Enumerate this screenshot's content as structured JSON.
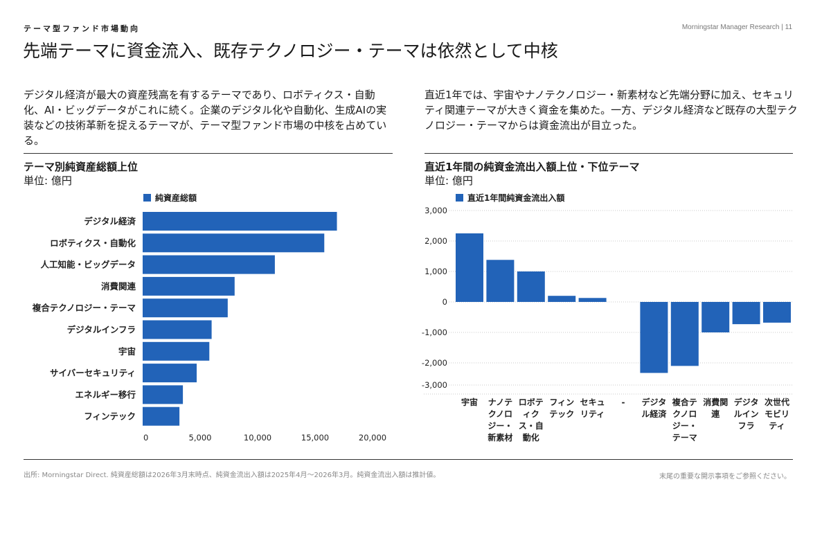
{
  "header": {
    "eyebrow": "テーマ型ファンド市場動向",
    "source_page": "Morningstar Manager Research | 11",
    "title": "先端テーマに資金流入、既存テクノロジー・テーマは依然として中核"
  },
  "intro": {
    "left": "デジタル経済が最大の資産残高を有するテーマであり、ロボティクス・自動化、AI・ビッグデータがこれに続く。企業のデジタル化や自動化、生成AIの実装などの技術革新を捉えるテーマが、テーマ型ファンド市場の中核を占めている。",
    "right": "直近1年では、宇宙やナノテクノロジー・新素材など先端分野に加え、セキュリティ関連テーマが大きく資金を集めた。一方、デジタル経済など既存の大型テクノロジー・テーマからは資金流出が目立った。"
  },
  "left_chart": {
    "title": "テーマ別純資産総額上位",
    "unit": "単位: 億円"
  },
  "right_chart": {
    "title": "直近1年間の純資金流出入額上位・下位テーマ",
    "unit": "単位: 億円"
  },
  "chart_data": [
    {
      "type": "bar",
      "orientation": "horizontal",
      "legend": "純資産総額",
      "color": "#2263b8",
      "categories": [
        "デジタル経済",
        "ロボティクス・自動化",
        "人工知能・ビッグデータ",
        "消費関連",
        "複合テクノロジー・テーマ",
        "デジタルインフラ",
        "宇宙",
        "サイバーセキュリティ",
        "エネルギー移行",
        "フィンテック"
      ],
      "values": [
        16900,
        15800,
        11500,
        8000,
        7400,
        6000,
        5800,
        4700,
        3500,
        3200
      ],
      "xlim": [
        0,
        20000
      ],
      "xticks": [
        0,
        5000,
        10000,
        15000,
        20000
      ],
      "xtick_labels": [
        "0",
        "5,000",
        "10,000",
        "15,000",
        "20,000"
      ],
      "grid": false
    },
    {
      "type": "bar",
      "orientation": "vertical",
      "legend": "直近1年間純資金流出入額",
      "color": "#2263b8",
      "categories": [
        "宇宙",
        "ナノテクノロジー・新素材",
        "ロボティクス・自動化",
        "フィンテック",
        "セキュリティ",
        "-",
        "デジタル経済",
        "複合テクノロジー・テーマ",
        "消費関連",
        "デジタルインフラ",
        "次世代モビリティ"
      ],
      "category_lines": [
        [
          "宇宙"
        ],
        [
          "ナノテ",
          "クノロ",
          "ジー・",
          "新素材"
        ],
        [
          "ロボテ",
          "ィク",
          "ス・自",
          "動化"
        ],
        [
          "フィン",
          "テック"
        ],
        [
          "セキュ",
          "リティ"
        ],
        [
          "-"
        ],
        [
          "デジタ",
          "ル経済"
        ],
        [
          "複合テ",
          "クノロ",
          "ジー・",
          "テーマ"
        ],
        [
          "消費関",
          "連"
        ],
        [
          "デジタ",
          "ルイン",
          "フラ"
        ],
        [
          "次世代",
          "モビリ",
          "ティ"
        ]
      ],
      "values": [
        2250,
        1380,
        1000,
        200,
        130,
        null,
        -2330,
        -2100,
        -1000,
        -730,
        -680
      ],
      "ylim": [
        -3000,
        3000
      ],
      "yticks": [
        3000,
        2000,
        1000,
        0,
        -1000,
        -2000,
        -3000
      ],
      "ytick_labels": [
        "3,000",
        "2,000",
        "1,000",
        "0",
        "-1,000",
        "-2,000",
        "-3,000"
      ],
      "grid": true
    }
  ],
  "footer": {
    "source": "出所: Morningstar Direct. 純資産総額は2026年3月末時点、純資金流出入額は2025年4月～2026年3月。純資金流出入額は推計値。",
    "disclaimer": "末尾の重要な開示事項をご参照ください。"
  }
}
